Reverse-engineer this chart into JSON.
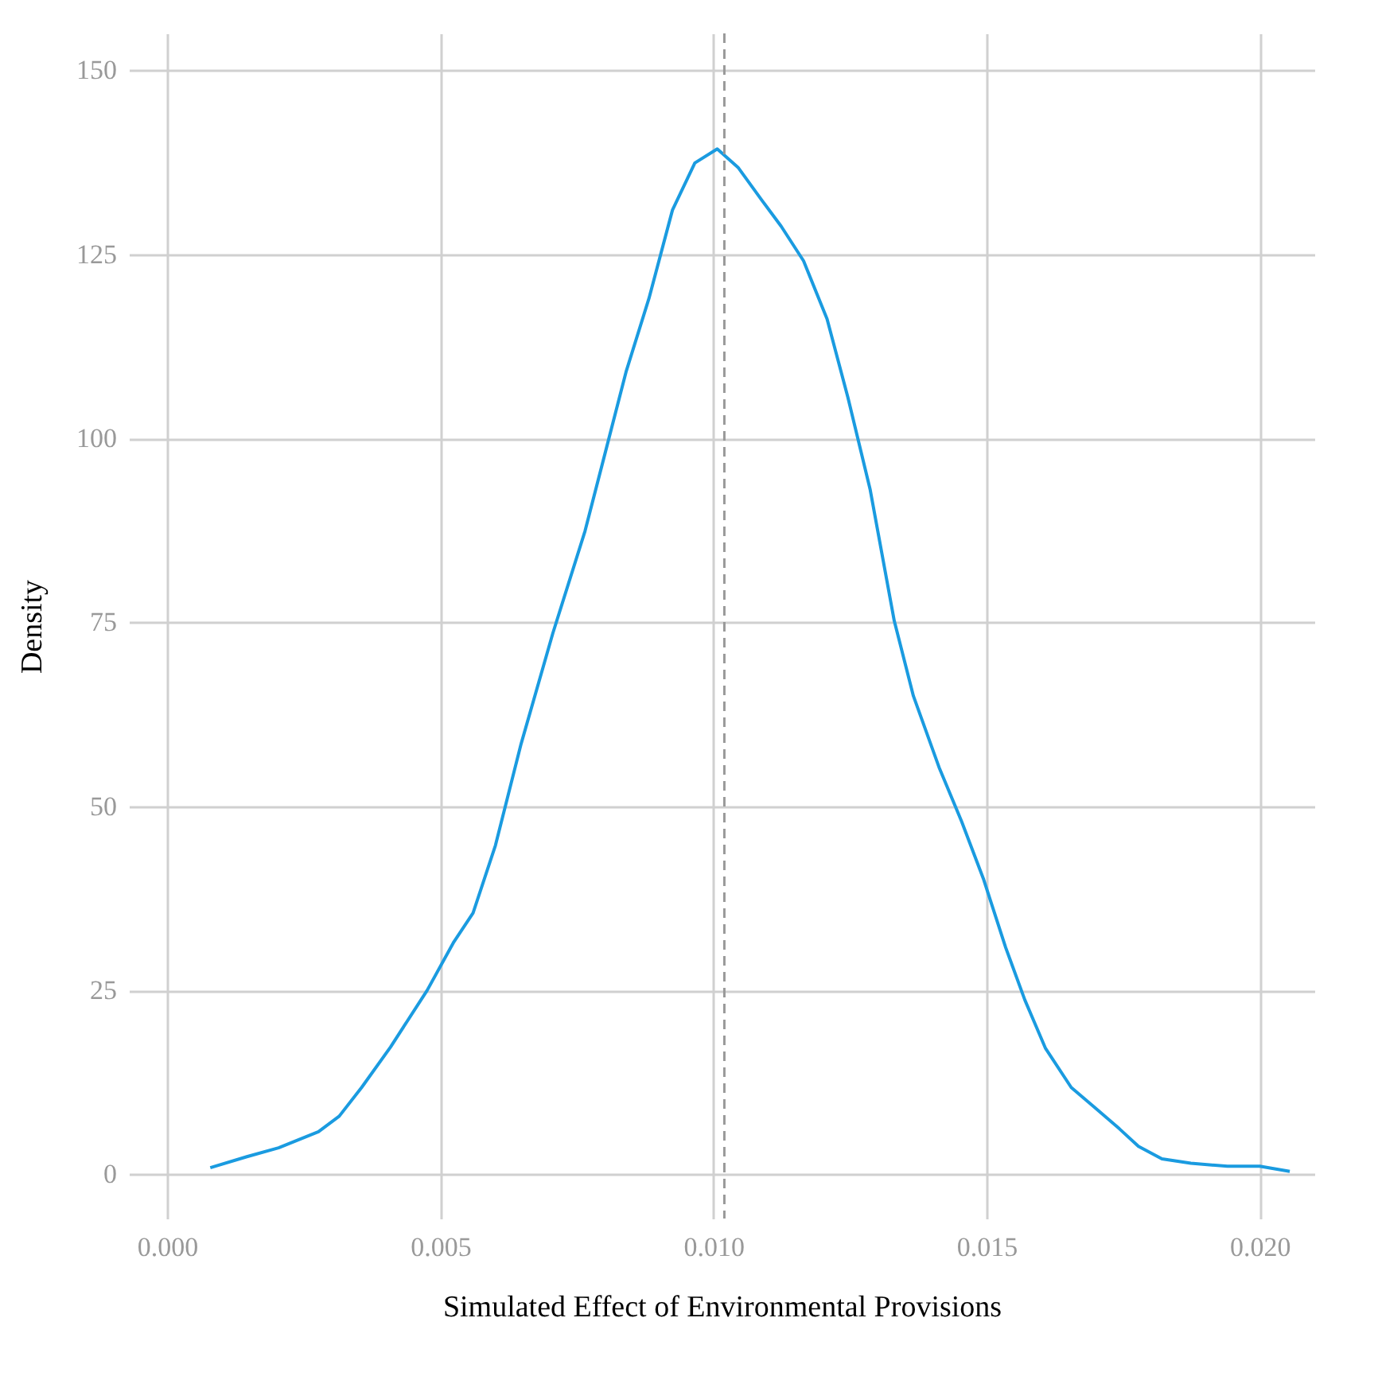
{
  "chart_data": {
    "type": "line",
    "xlabel": "Simulated Effect of Environmental Provisions",
    "ylabel": "Density",
    "x": [
      0.00079,
      0.00146,
      0.00204,
      0.00277,
      0.00315,
      0.00356,
      0.00409,
      0.00476,
      0.00525,
      0.0056,
      0.00601,
      0.00648,
      0.00706,
      0.00765,
      0.0084,
      0.00882,
      0.00925,
      0.00966,
      0.01007,
      0.01045,
      0.01089,
      0.01124,
      0.01165,
      0.01208,
      0.01246,
      0.01287,
      0.01331,
      0.01366,
      0.01413,
      0.01454,
      0.01494,
      0.01535,
      0.0157,
      0.01608,
      0.01655,
      0.01696,
      0.01743,
      0.01778,
      0.01821,
      0.01874,
      0.01941,
      0.02,
      0.02055
    ],
    "series": [
      {
        "color": "#1a9be0",
        "values": [
          0.9,
          2.4,
          3.6,
          5.8,
          7.9,
          11.8,
          17.3,
          25,
          31.6,
          35.5,
          44.7,
          58.5,
          73.5,
          87.4,
          109,
          119,
          131,
          137.4,
          139.3,
          136.8,
          132.3,
          128.8,
          124.1,
          116.2,
          105.6,
          93,
          75.2,
          65,
          55.3,
          48,
          40.2,
          30.8,
          23.7,
          17.1,
          11.8,
          9.2,
          6.2,
          3.8,
          2.1,
          1.5,
          1.1,
          1.1,
          0.4
        ]
      }
    ],
    "xlim": [
      -0.0007,
      0.021
    ],
    "ylim": [
      -6,
      155
    ],
    "xticks": [
      {
        "value": 0,
        "label": "0.000"
      },
      {
        "value": 0.005,
        "label": "0.005"
      },
      {
        "value": 0.01,
        "label": "0.010"
      },
      {
        "value": 0.015,
        "label": "0.015"
      },
      {
        "value": 0.02,
        "label": "0.020"
      }
    ],
    "yticks": [
      0,
      25,
      50,
      75,
      100,
      125,
      150
    ],
    "ref_lines": [
      {
        "axis": "x",
        "value": 0.0102,
        "color": "#999999",
        "line_style": "dashed"
      }
    ],
    "grid": true,
    "marker": "none",
    "line_style": "solid"
  }
}
